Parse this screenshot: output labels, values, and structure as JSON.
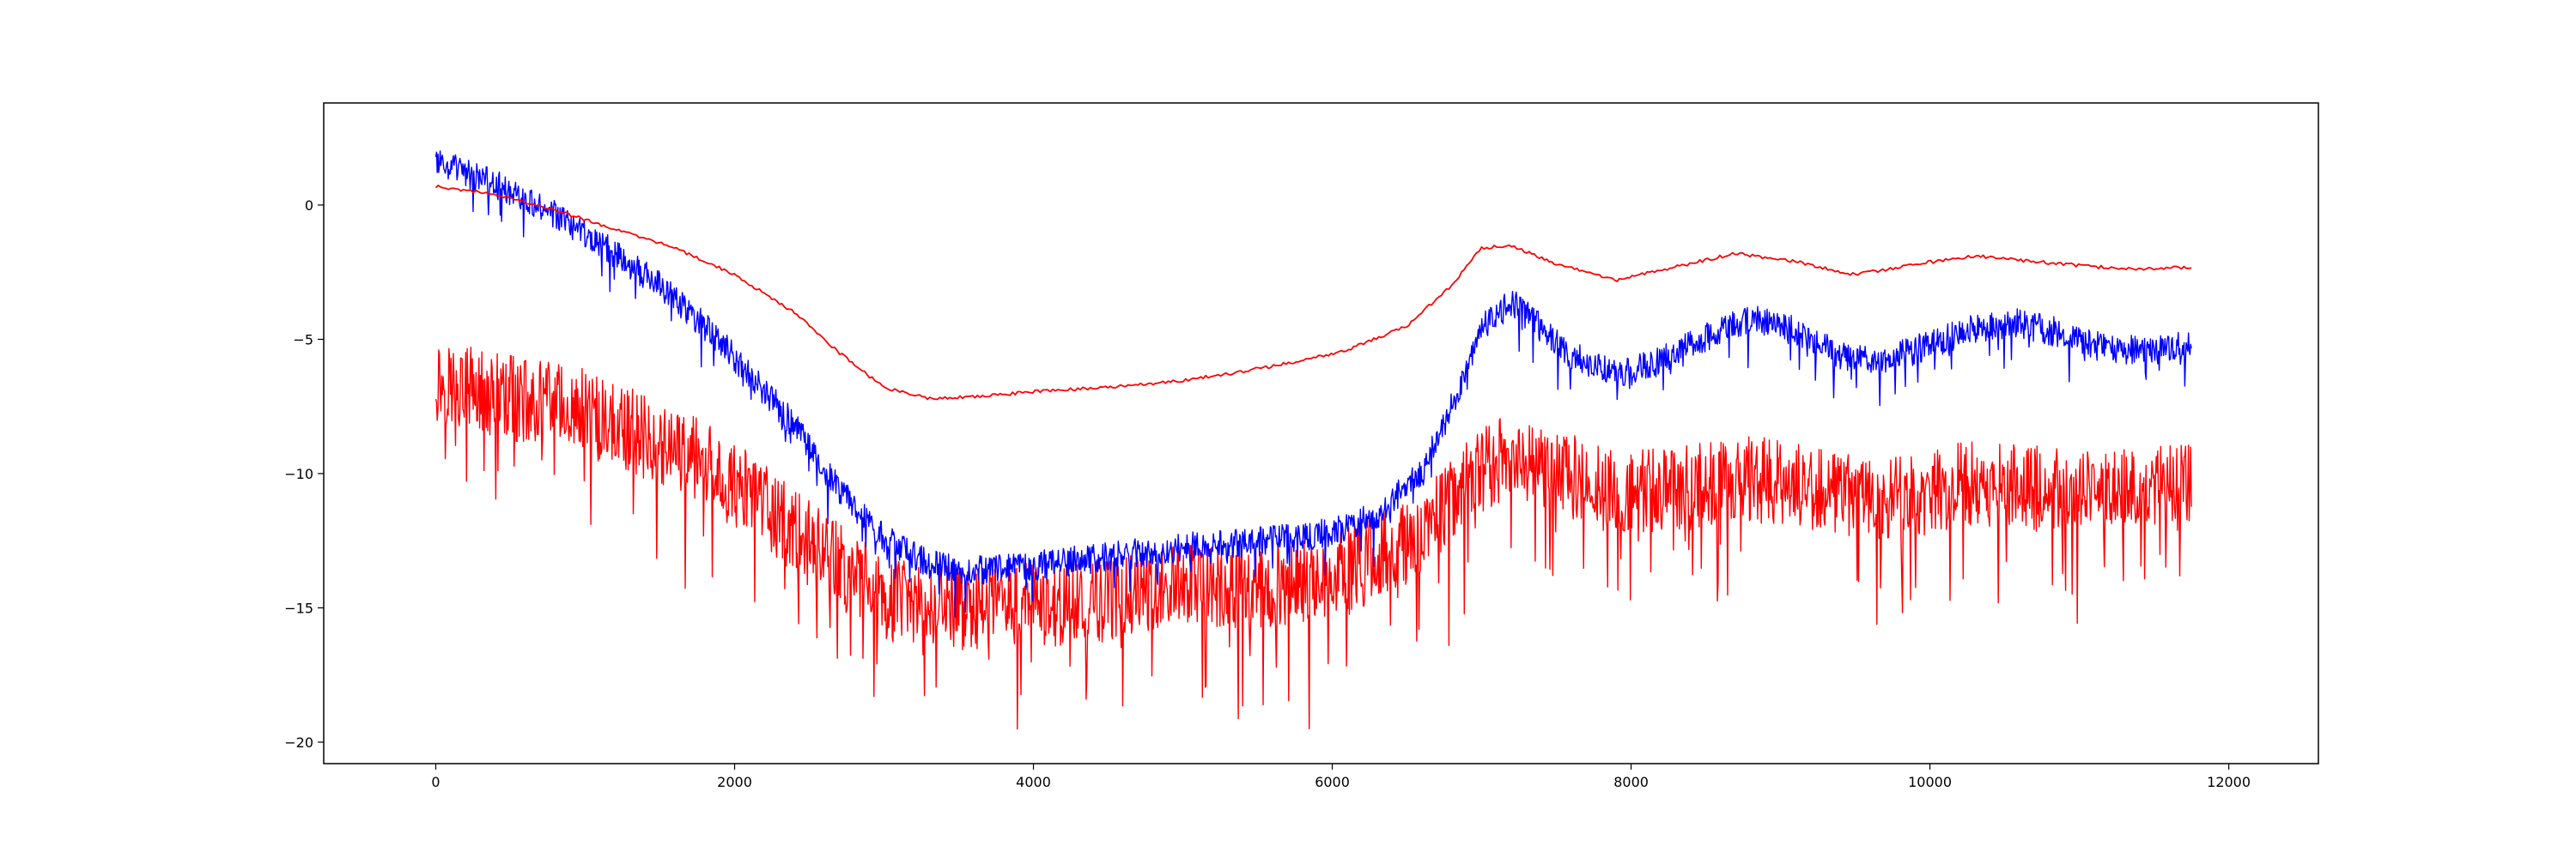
{
  "chart_data": {
    "type": "line",
    "title": "",
    "xlabel": "",
    "ylabel": "",
    "xlim": [
      -750,
      12600
    ],
    "ylim": [
      -20.8,
      3.8
    ],
    "xticks": [
      0,
      2000,
      4000,
      6000,
      8000,
      10000,
      12000
    ],
    "yticks": [
      0,
      -5,
      -10,
      -15,
      -20
    ],
    "grid": false,
    "legend": "none",
    "series": [
      {
        "color": "#ff0000",
        "style": "noisy-band",
        "points": [
          [
            0,
            -6.5
          ],
          [
            300,
            -7
          ],
          [
            600,
            -7.3
          ],
          [
            900,
            -7.5
          ],
          [
            1200,
            -8.2
          ],
          [
            1500,
            -8.8
          ],
          [
            1800,
            -9.7
          ],
          [
            2100,
            -10.8
          ],
          [
            2400,
            -12.2
          ],
          [
            2700,
            -13.4
          ],
          [
            3000,
            -14.6
          ],
          [
            3300,
            -15
          ],
          [
            3600,
            -15
          ],
          [
            3900,
            -14.8
          ],
          [
            4200,
            -14.9
          ],
          [
            4500,
            -14.7
          ],
          [
            4800,
            -14.3
          ],
          [
            5100,
            -14.2
          ],
          [
            5400,
            -14.2
          ],
          [
            5700,
            -14.1
          ],
          [
            6000,
            -13.8
          ],
          [
            6300,
            -13.2
          ],
          [
            6600,
            -12.2
          ],
          [
            6900,
            -10.2
          ],
          [
            7200,
            -9.2
          ],
          [
            7500,
            -9.8
          ],
          [
            7800,
            -10.6
          ],
          [
            8100,
            -10.7
          ],
          [
            8400,
            -10.5
          ],
          [
            8700,
            -10.2
          ],
          [
            9000,
            -10.3
          ],
          [
            9300,
            -10.6
          ],
          [
            9600,
            -10.9
          ],
          [
            9900,
            -10.8
          ],
          [
            10200,
            -10.4
          ],
          [
            10500,
            -10.5
          ],
          [
            10800,
            -10.6
          ],
          [
            11100,
            -10.7
          ],
          [
            11400,
            -10.6
          ],
          [
            11750,
            -10.5
          ]
        ],
        "noise_amplitude": 1.6
      },
      {
        "color": "#0000ff",
        "style": "noisy-band",
        "points": [
          [
            0,
            1.6
          ],
          [
            300,
            1
          ],
          [
            600,
            0.3
          ],
          [
            900,
            -0.7
          ],
          [
            1200,
            -1.8
          ],
          [
            1500,
            -3
          ],
          [
            1800,
            -4.5
          ],
          [
            2100,
            -6.3
          ],
          [
            2400,
            -8.2
          ],
          [
            2700,
            -10.6
          ],
          [
            3000,
            -12.4
          ],
          [
            3300,
            -13.4
          ],
          [
            3600,
            -13.6
          ],
          [
            3900,
            -13.5
          ],
          [
            4200,
            -13.3
          ],
          [
            4500,
            -13.1
          ],
          [
            4800,
            -12.9
          ],
          [
            5100,
            -12.7
          ],
          [
            5400,
            -12.6
          ],
          [
            5700,
            -12.4
          ],
          [
            6000,
            -12.2
          ],
          [
            6300,
            -11.5
          ],
          [
            6600,
            -10
          ],
          [
            6800,
            -7.5
          ],
          [
            7000,
            -4.6
          ],
          [
            7200,
            -3.6
          ],
          [
            7400,
            -4.6
          ],
          [
            7600,
            -5.6
          ],
          [
            7800,
            -6.1
          ],
          [
            8000,
            -6.2
          ],
          [
            8200,
            -5.8
          ],
          [
            8500,
            -4.9
          ],
          [
            8800,
            -4.2
          ],
          [
            9100,
            -4.7
          ],
          [
            9400,
            -5.6
          ],
          [
            9700,
            -5.8
          ],
          [
            10000,
            -5.2
          ],
          [
            10300,
            -4.6
          ],
          [
            10600,
            -4.4
          ],
          [
            10900,
            -4.8
          ],
          [
            11200,
            -5.4
          ],
          [
            11500,
            -5.4
          ],
          [
            11750,
            -5.2
          ]
        ],
        "noise_amplitude": 0.55
      },
      {
        "color": "#ff0000",
        "style": "line",
        "points": [
          [
            0,
            0.7
          ],
          [
            400,
            0.4
          ],
          [
            800,
            -0.2
          ],
          [
            1200,
            -0.9
          ],
          [
            1600,
            -1.6
          ],
          [
            2000,
            -2.6
          ],
          [
            2400,
            -4
          ],
          [
            2700,
            -5.5
          ],
          [
            3000,
            -6.8
          ],
          [
            3300,
            -7.2
          ],
          [
            3700,
            -7.1
          ],
          [
            4100,
            -6.9
          ],
          [
            4500,
            -6.8
          ],
          [
            4900,
            -6.6
          ],
          [
            5300,
            -6.3
          ],
          [
            5700,
            -5.9
          ],
          [
            6100,
            -5.4
          ],
          [
            6500,
            -4.5
          ],
          [
            6800,
            -3
          ],
          [
            7000,
            -1.6
          ],
          [
            7200,
            -1.5
          ],
          [
            7500,
            -2.2
          ],
          [
            7900,
            -2.8
          ],
          [
            8300,
            -2.3
          ],
          [
            8700,
            -1.8
          ],
          [
            9100,
            -2.1
          ],
          [
            9500,
            -2.6
          ],
          [
            9900,
            -2.2
          ],
          [
            10300,
            -1.9
          ],
          [
            10700,
            -2.1
          ],
          [
            11100,
            -2.3
          ],
          [
            11400,
            -2.4
          ],
          [
            11750,
            -2.3
          ]
        ],
        "noise_amplitude": 0.12
      }
    ]
  }
}
